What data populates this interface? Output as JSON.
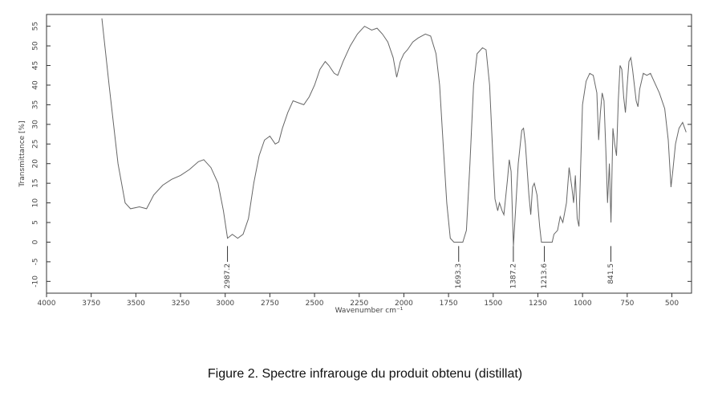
{
  "chart_data": {
    "type": "line",
    "x_label": "Wavenumber cm⁻¹",
    "y_label": "Transmittance [%]",
    "caption": "Figure 2. Spectre infrarouge du produit obtenu (distillat)",
    "xlim": [
      4000,
      390
    ],
    "ylim": [
      -13,
      58
    ],
    "xticks": [
      4000,
      3750,
      3500,
      3250,
      3000,
      2750,
      2500,
      2250,
      2000,
      1750,
      1500,
      1250,
      1000,
      750,
      500
    ],
    "yticks": [
      -10,
      -5,
      0,
      5,
      10,
      15,
      20,
      25,
      30,
      35,
      40,
      45,
      50,
      55
    ],
    "color": "#666666",
    "peaks": [
      2987.2,
      1693.3,
      1387.2,
      1213.6,
      841.5
    ],
    "x": [
      3690,
      3650,
      3600,
      3560,
      3530,
      3480,
      3440,
      3400,
      3350,
      3300,
      3250,
      3200,
      3150,
      3120,
      3080,
      3040,
      3010,
      2987,
      2960,
      2930,
      2900,
      2870,
      2840,
      2810,
      2780,
      2750,
      2720,
      2700,
      2680,
      2650,
      2620,
      2590,
      2560,
      2530,
      2500,
      2470,
      2440,
      2420,
      2390,
      2370,
      2340,
      2300,
      2260,
      2220,
      2180,
      2150,
      2120,
      2090,
      2060,
      2040,
      2020,
      2000,
      1980,
      1950,
      1920,
      1880,
      1850,
      1820,
      1800,
      1780,
      1760,
      1740,
      1720,
      1693,
      1670,
      1650,
      1630,
      1610,
      1590,
      1560,
      1540,
      1520,
      1500,
      1490,
      1475,
      1465,
      1450,
      1440,
      1420,
      1410,
      1400,
      1387,
      1375,
      1360,
      1340,
      1330,
      1320,
      1300,
      1290,
      1280,
      1270,
      1255,
      1240,
      1230,
      1213,
      1190,
      1170,
      1160,
      1140,
      1125,
      1110,
      1090,
      1075,
      1060,
      1050,
      1040,
      1030,
      1020,
      1010,
      1000,
      980,
      960,
      940,
      920,
      910,
      900,
      890,
      880,
      870,
      860,
      850,
      841,
      830,
      820,
      810,
      800,
      790,
      780,
      770,
      760,
      750,
      740,
      730,
      720,
      700,
      690,
      680,
      660,
      640,
      620,
      600,
      570,
      540,
      520,
      505,
      495,
      480,
      460,
      440,
      420
    ],
    "values": [
      57,
      40,
      20,
      10,
      8.5,
      9,
      8.5,
      12,
      14.5,
      16,
      17,
      18.5,
      20.5,
      21,
      19,
      15,
      8,
      1,
      2,
      1,
      2,
      6,
      15,
      22,
      26,
      27,
      25,
      25.5,
      29,
      33,
      36,
      35.5,
      35,
      37,
      40,
      44,
      46,
      45,
      43,
      42.5,
      46,
      50,
      53,
      55,
      54,
      54.5,
      53,
      51,
      47,
      42,
      46,
      48,
      49,
      51,
      52,
      53,
      52.5,
      48,
      40,
      25,
      10,
      1,
      0,
      0,
      0,
      3,
      20,
      40,
      48,
      49.5,
      49,
      40,
      20,
      11,
      8,
      10,
      8,
      7,
      16,
      21,
      18,
      -1,
      8,
      20,
      28.5,
      29,
      25,
      12,
      7,
      14,
      15,
      12,
      4,
      0,
      0,
      0,
      0,
      2,
      3,
      6.5,
      5,
      10,
      19,
      14,
      10,
      17,
      6,
      4,
      20,
      35,
      41,
      43,
      42.5,
      38,
      26,
      33,
      38,
      36,
      24,
      10,
      20,
      5,
      29,
      25,
      22,
      36,
      45,
      44,
      37,
      33,
      40,
      46,
      47,
      44,
      36,
      34.5,
      39,
      43,
      42.5,
      43,
      41,
      38,
      34,
      26,
      14,
      18,
      25,
      29,
      30.5,
      28
    ]
  }
}
